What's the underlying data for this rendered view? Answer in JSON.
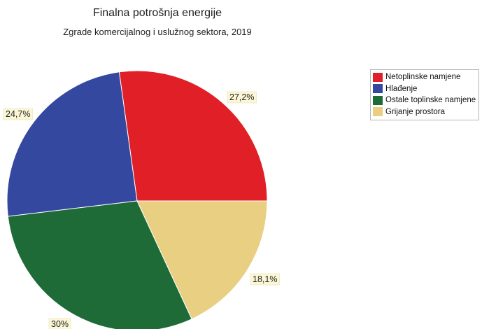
{
  "chart_data": {
    "type": "pie",
    "title": "Finalna potrošnja energije",
    "subtitle": "Zgrade komercijalnog i uslužnog sektora, 2019",
    "slices": [
      {
        "name": "Netoplinske namjene",
        "value": 27.2,
        "label": "27,2%",
        "color": "#e01f26"
      },
      {
        "name": "Grijanje prostora",
        "value": 18.1,
        "label": "18,1%",
        "color": "#e8cf82"
      },
      {
        "name": "Ostale toplinske namjene",
        "value": 30.0,
        "label": "30%",
        "color": "#1e6b38"
      },
      {
        "name": "Hlađenje",
        "value": 24.7,
        "label": "24,7%",
        "color": "#3448a0"
      }
    ],
    "legend": {
      "position": "top-right",
      "items": [
        {
          "name": "Netoplinske namjene",
          "color": "#e01f26"
        },
        {
          "name": "Hlađenje",
          "color": "#3448a0"
        },
        {
          "name": "Ostale toplinske namjene",
          "color": "#1e6b38"
        },
        {
          "name": "Grijanje prostora",
          "color": "#e8cf82"
        }
      ]
    }
  }
}
